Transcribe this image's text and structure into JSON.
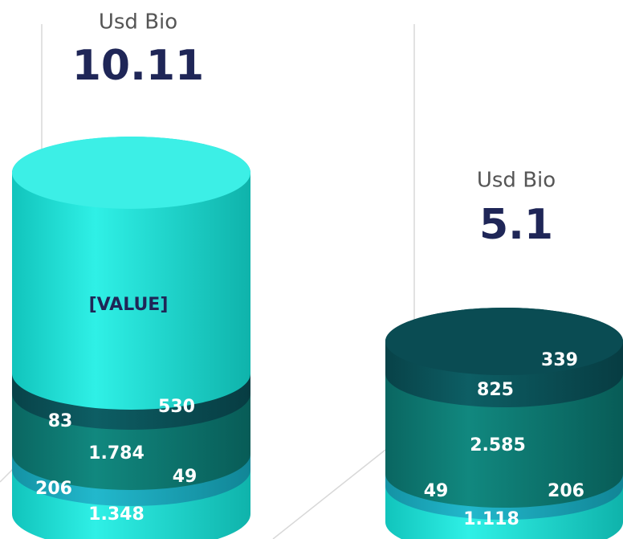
{
  "columns": [
    {
      "unit": "Usd Bio",
      "total": 10.11,
      "labels": [
        "[VALUE]",
        "83",
        "530",
        "1.784",
        "49",
        "206",
        "1.348"
      ]
    },
    {
      "unit": "Usd Bio",
      "total": 5.1,
      "labels": [
        "339",
        "825",
        "2.585",
        "49",
        "206",
        "1.118"
      ]
    }
  ]
}
